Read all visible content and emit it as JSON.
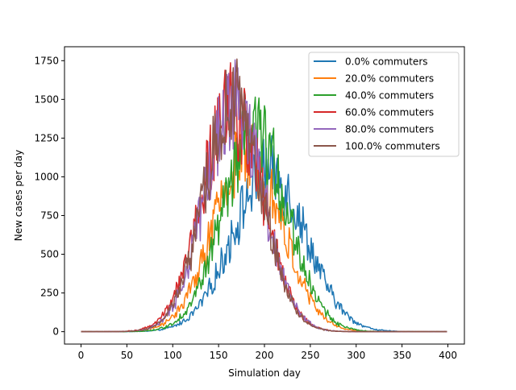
{
  "chart_data": {
    "type": "line",
    "title": "",
    "xlabel": "Simulation day",
    "ylabel": "New cases per day",
    "xlim": [
      -18,
      418
    ],
    "ylim": [
      -80,
      1840
    ],
    "xticks": [
      0,
      50,
      100,
      150,
      200,
      250,
      300,
      350,
      400
    ],
    "yticks": [
      0,
      250,
      500,
      750,
      1000,
      1250,
      1500,
      1750
    ],
    "grid": false,
    "legend_position": "top-right",
    "x": {
      "start": 0,
      "end": 399,
      "step": 1
    },
    "series": [
      {
        "name": "0.0% commuters",
        "color": "#1f77b4",
        "peak_day": 205,
        "peak_value": 1030,
        "spread": 40,
        "noise": 0.22,
        "max_point": [
          208,
          1265
        ]
      },
      {
        "name": "20.0% commuters",
        "color": "#ff7f0e",
        "peak_day": 182,
        "peak_value": 1150,
        "spread": 37,
        "noise": 0.22,
        "max_point": [
          176,
          1345
        ]
      },
      {
        "name": "40.0% commuters",
        "color": "#2ca02c",
        "peak_day": 190,
        "peak_value": 1250,
        "spread": 36,
        "noise": 0.22,
        "max_point": [
          190,
          1515
        ]
      },
      {
        "name": "60.0% commuters",
        "color": "#d62728",
        "peak_day": 165,
        "peak_value": 1450,
        "spread": 33,
        "noise": 0.22,
        "max_point": [
          165,
          1675
        ]
      },
      {
        "name": "80.0% commuters",
        "color": "#9467bd",
        "peak_day": 167,
        "peak_value": 1480,
        "spread": 32,
        "noise": 0.22,
        "max_point": [
          168,
          1755
        ]
      },
      {
        "name": "100.0% commuters",
        "color": "#8c564b",
        "peak_day": 166,
        "peak_value": 1450,
        "spread": 32,
        "noise": 0.22,
        "max_point": [
          165,
          1610
        ]
      }
    ]
  }
}
